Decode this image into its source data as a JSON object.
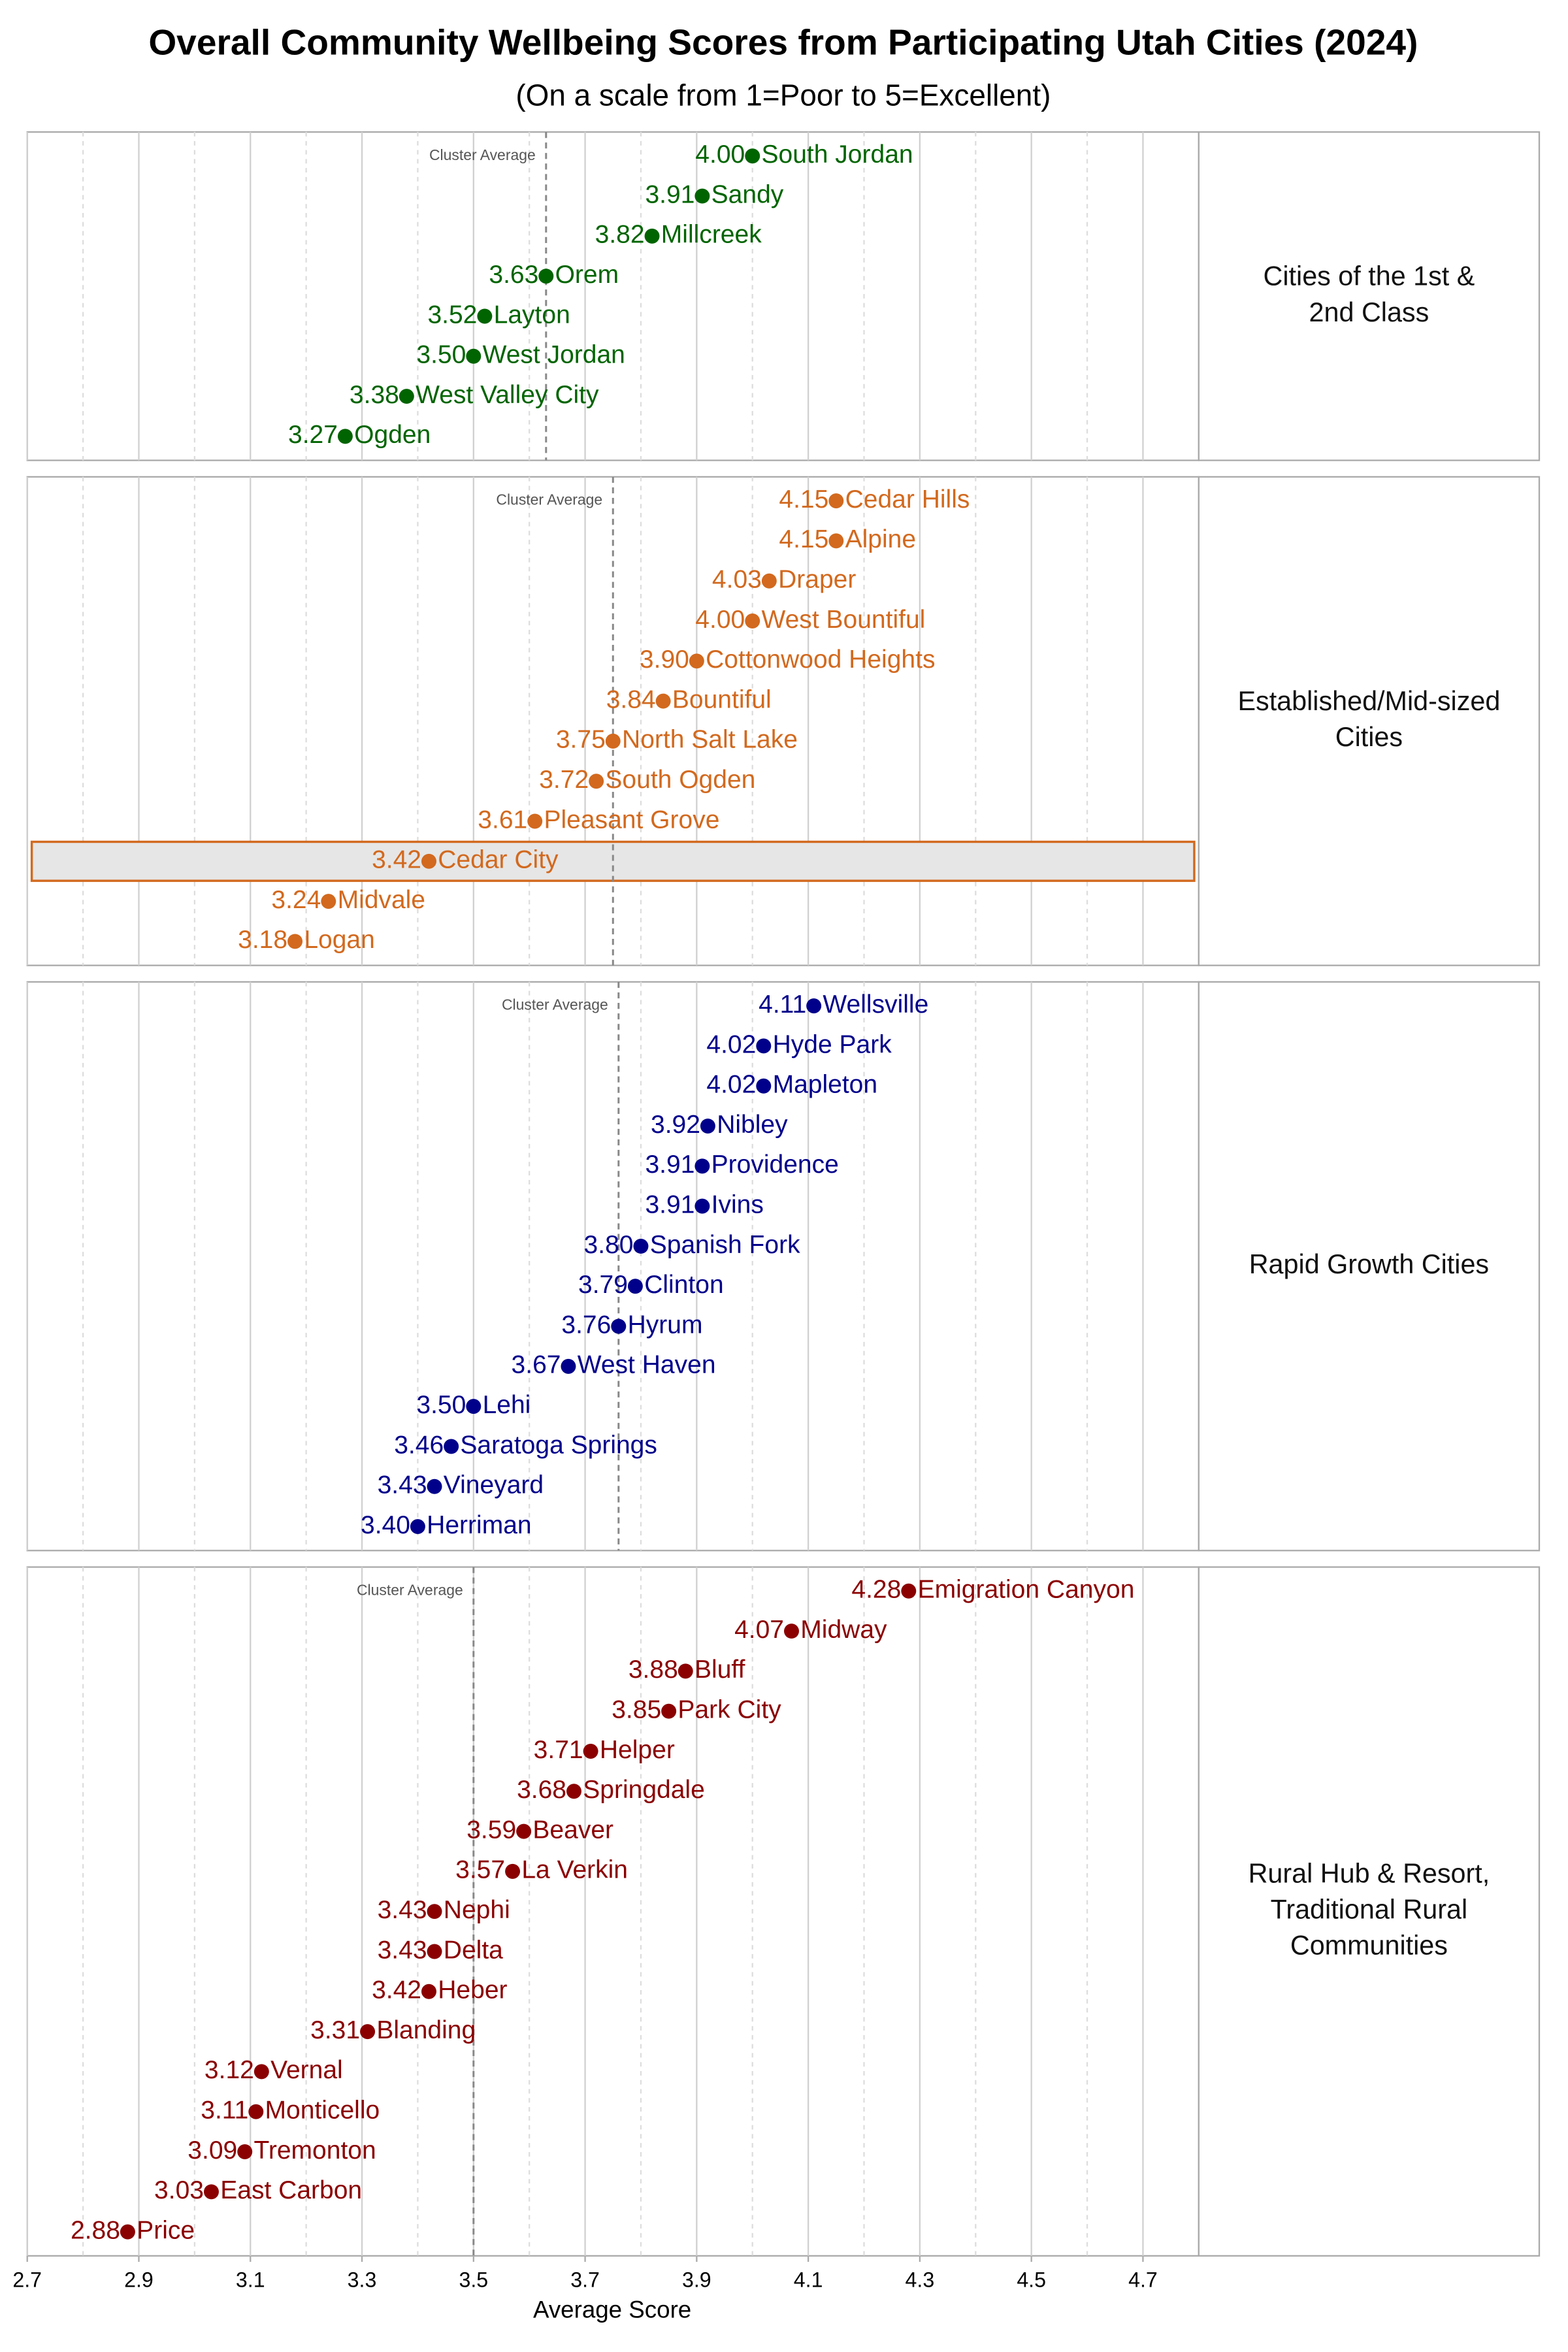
{
  "chart_data": {
    "type": "dot",
    "title": "Overall Community Wellbeing Scores from Participating Utah Cities (2024)",
    "subtitle": "(On a scale from 1=Poor to 5=Excellent)",
    "x_label": "Average Score",
    "xlim": [
      2.7,
      4.8
    ],
    "xticks": [
      2.7,
      2.9,
      3.1,
      3.3,
      3.5,
      3.7,
      3.9,
      4.1,
      4.3,
      4.5,
      4.7
    ],
    "minor_xticks": [
      2.8,
      3.0,
      3.2,
      3.4,
      3.6,
      3.8,
      4.0,
      4.2,
      4.4,
      4.6
    ],
    "grid": true,
    "panels": [
      {
        "label": [
          "Cities of the 1st &",
          "2nd Class"
        ],
        "color": "#006400",
        "categories": [
          "South Jordan",
          "Sandy",
          "Millcreek",
          "Orem",
          "Layton",
          "West Jordan",
          "West Valley City",
          "Ogden"
        ],
        "values": [
          4.0,
          3.91,
          3.82,
          3.63,
          3.52,
          3.5,
          3.38,
          3.27
        ],
        "value_labels": [
          "4.00",
          "3.91",
          "3.82",
          "3.63",
          "3.52",
          "3.50",
          "3.38",
          "3.27"
        ],
        "cluster_average": 3.63,
        "average_label": "Cluster Average"
      },
      {
        "label": [
          "Established/Mid-sized",
          "Cities"
        ],
        "color": "#d2691e",
        "categories": [
          "Cedar Hills",
          "Alpine",
          "Draper",
          "West Bountiful",
          "Cottonwood Heights",
          "Bountiful",
          "North Salt Lake",
          "South Ogden",
          "Pleasant Grove",
          "Cedar City",
          "Midvale",
          "Logan"
        ],
        "values": [
          4.15,
          4.15,
          4.03,
          4.0,
          3.9,
          3.84,
          3.75,
          3.72,
          3.61,
          3.42,
          3.24,
          3.18
        ],
        "value_labels": [
          "4.15",
          "4.15",
          "4.03",
          "4.00",
          "3.90",
          "3.84",
          "3.75",
          "3.72",
          "3.61",
          "3.42",
          "3.24",
          "3.18"
        ],
        "cluster_average": 3.75,
        "average_label": "Cluster Average",
        "highlighted": [
          9
        ]
      },
      {
        "label": [
          "Rapid Growth Cities"
        ],
        "color": "#00008b",
        "categories": [
          "Wellsville",
          "Hyde Park",
          "Mapleton",
          "Nibley",
          "Providence",
          "Ivins",
          "Spanish Fork",
          "Clinton",
          "Hyrum",
          "West Haven",
          "Lehi",
          "Saratoga Springs",
          "Vineyard",
          "Herriman"
        ],
        "values": [
          4.11,
          4.02,
          4.02,
          3.92,
          3.91,
          3.91,
          3.8,
          3.79,
          3.76,
          3.67,
          3.5,
          3.46,
          3.43,
          3.4
        ],
        "value_labels": [
          "4.11",
          "4.02",
          "4.02",
          "3.92",
          "3.91",
          "3.91",
          "3.80",
          "3.79",
          "3.76",
          "3.67",
          "3.50",
          "3.46",
          "3.43",
          "3.40"
        ],
        "cluster_average": 3.76,
        "average_label": "Cluster Average"
      },
      {
        "label": [
          "Rural Hub & Resort,",
          "Traditional Rural",
          "Communities"
        ],
        "color": "#8b0000",
        "categories": [
          "Emigration Canyon",
          "Midway",
          "Bluff",
          "Park City",
          "Helper",
          "Springdale",
          "Beaver",
          "La Verkin",
          "Nephi",
          "Delta",
          "Heber",
          "Blanding",
          "Vernal",
          "Monticello",
          "Tremonton",
          "East Carbon",
          "Price"
        ],
        "values": [
          4.28,
          4.07,
          3.88,
          3.85,
          3.71,
          3.68,
          3.59,
          3.57,
          3.43,
          3.43,
          3.42,
          3.31,
          3.12,
          3.11,
          3.09,
          3.03,
          2.88
        ],
        "value_labels": [
          "4.28",
          "4.07",
          "3.88",
          "3.85",
          "3.71",
          "3.68",
          "3.59",
          "3.57",
          "3.43",
          "3.43",
          "3.42",
          "3.31",
          "3.12",
          "3.11",
          "3.09",
          "3.03",
          "2.88"
        ],
        "cluster_average": 3.5,
        "average_label": "Cluster Average"
      }
    ]
  }
}
